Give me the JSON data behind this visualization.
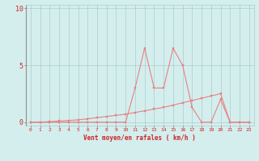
{
  "x": [
    0,
    1,
    2,
    3,
    4,
    5,
    6,
    7,
    8,
    9,
    10,
    11,
    12,
    13,
    14,
    15,
    16,
    17,
    18,
    19,
    20,
    21,
    22,
    23
  ],
  "y_moyen": [
    0.0,
    0.0,
    0.05,
    0.1,
    0.15,
    0.2,
    0.3,
    0.4,
    0.5,
    0.6,
    0.7,
    0.85,
    1.0,
    1.15,
    1.3,
    1.5,
    1.7,
    1.9,
    2.1,
    2.3,
    2.5,
    0.0,
    0.0,
    0.0
  ],
  "y_rafales": [
    0.0,
    0.0,
    0.0,
    0.0,
    0.0,
    0.0,
    0.0,
    0.0,
    0.0,
    0.0,
    0.0,
    3.0,
    6.5,
    3.0,
    3.0,
    6.5,
    5.0,
    1.3,
    0.0,
    0.0,
    2.0,
    0.0,
    0.0,
    0.0
  ],
  "bg_color": "#d4eeee",
  "grid_color": "#aacccc",
  "line_color": "#e88080",
  "marker_color": "#e88080",
  "xlabel": "Vent moyen/en rafales ( km/h )",
  "xlabel_color": "#cc2222",
  "xlabel_fontsize": 5.5,
  "tick_color": "#cc2222",
  "ytick_fontsize": 6,
  "xtick_fontsize": 4.5,
  "yticks": [
    0,
    5,
    10
  ],
  "ylim": [
    -0.3,
    10.3
  ],
  "xlim": [
    -0.5,
    23.5
  ]
}
